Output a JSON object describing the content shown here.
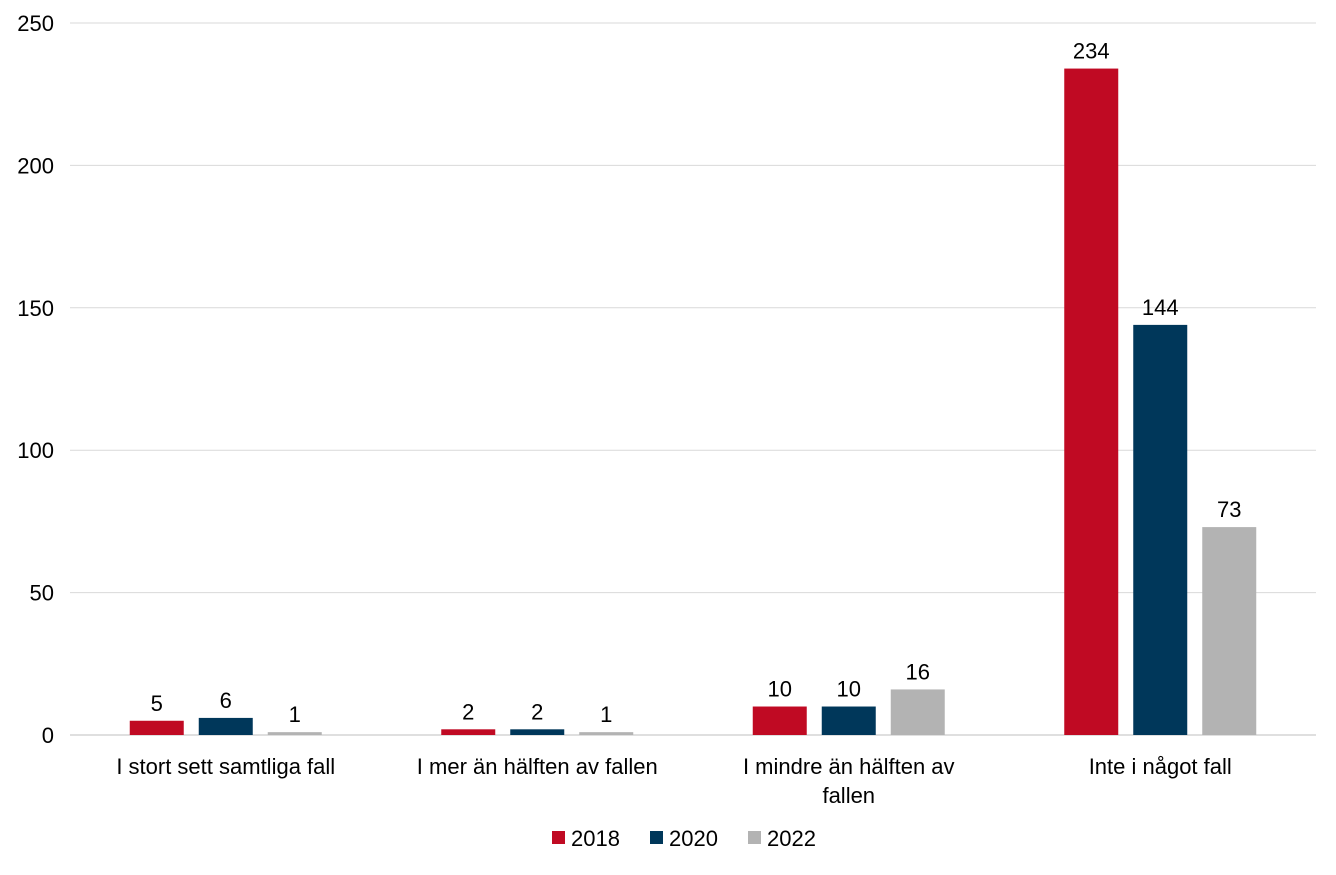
{
  "chart_data": {
    "type": "bar",
    "title": "",
    "xlabel": "",
    "ylabel": "",
    "ylim": [
      0,
      250
    ],
    "yticks": [
      0,
      50,
      100,
      150,
      200,
      250
    ],
    "grid": true,
    "legend_position": "bottom",
    "categories": [
      [
        "I stort sett samtliga fall"
      ],
      [
        "I mer än hälften av fallen"
      ],
      [
        "I mindre än hälften av",
        "fallen"
      ],
      [
        "Inte i något fall"
      ]
    ],
    "series": [
      {
        "name": "2018",
        "color": "#c00a23",
        "values": [
          5,
          2,
          10,
          234
        ]
      },
      {
        "name": "2020",
        "color": "#00375a",
        "values": [
          6,
          2,
          10,
          144
        ]
      },
      {
        "name": "2022",
        "color": "#b3b3b3",
        "values": [
          1,
          1,
          16,
          73
        ]
      }
    ]
  }
}
